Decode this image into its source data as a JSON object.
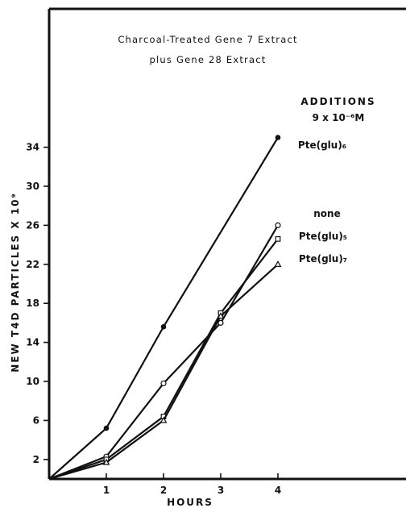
{
  "chart_data": {
    "type": "line",
    "title_lines": [
      "Charcoal-Treated Gene 7 Extract",
      "plus Gene 28 Extract"
    ],
    "xlabel": "HOURS",
    "ylabel": "NEW T4D PARTICLES X 10⁹",
    "x_ticks": [
      "1",
      "2",
      "3",
      "4"
    ],
    "y_ticks": [
      "2",
      "6",
      "10",
      "14",
      "18",
      "22",
      "26",
      "30",
      "34"
    ],
    "xlim": [
      0,
      4.5
    ],
    "ylim": [
      0,
      38
    ],
    "legend_title": [
      "ADDITIONS",
      "9 x 10⁻⁶M"
    ],
    "series": [
      {
        "name": "Pte(glu)₆",
        "marker": "filled-circle",
        "x": [
          0,
          1,
          2,
          4
        ],
        "y": [
          0,
          5.2,
          15.6,
          35
        ]
      },
      {
        "name": "none",
        "marker": "open-circle",
        "x": [
          0,
          1,
          2,
          3,
          4
        ],
        "y": [
          0,
          2.3,
          9.8,
          16,
          26
        ]
      },
      {
        "name": "Pte(glu)₅",
        "marker": "open-square",
        "x": [
          0,
          1,
          2,
          3,
          4
        ],
        "y": [
          0,
          2,
          6.4,
          17,
          24.6
        ]
      },
      {
        "name": "Pte(glu)₇",
        "marker": "open-triangle",
        "x": [
          0,
          1,
          2,
          3,
          4
        ],
        "y": [
          0,
          1.7,
          6,
          16.7,
          22
        ]
      }
    ]
  }
}
